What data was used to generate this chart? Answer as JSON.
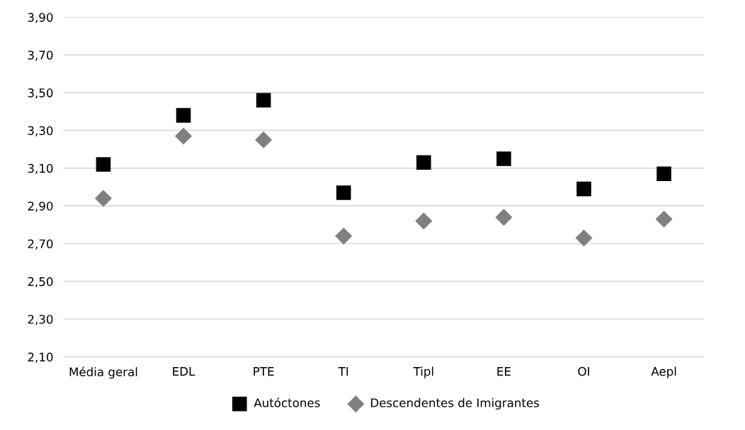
{
  "chart_data": {
    "type": "scatter",
    "categories": [
      "Média geral",
      "EDL",
      "PTE",
      "TI",
      "Tipl",
      "EE",
      "OI",
      "Aepl"
    ],
    "series": [
      {
        "name": "Autóctones",
        "color": "#000000",
        "marker": "square",
        "values": [
          3.12,
          3.38,
          3.46,
          2.97,
          3.13,
          3.15,
          2.99,
          3.07
        ]
      },
      {
        "name": "Descendentes de Imigrantes",
        "color": "#808080",
        "marker": "diamond",
        "values": [
          2.94,
          3.27,
          3.25,
          2.74,
          2.82,
          2.84,
          2.73,
          2.83
        ]
      }
    ],
    "ylim": [
      2.1,
      3.9
    ],
    "yticks": [
      {
        "value": 2.1,
        "label": "2,10"
      },
      {
        "value": 2.3,
        "label": "2,30"
      },
      {
        "value": 2.5,
        "label": "2,50"
      },
      {
        "value": 2.7,
        "label": "2,70"
      },
      {
        "value": 2.9,
        "label": "2,90"
      },
      {
        "value": 3.1,
        "label": "3,10"
      },
      {
        "value": 3.3,
        "label": "3,30"
      },
      {
        "value": 3.5,
        "label": "3,50"
      },
      {
        "value": 3.7,
        "label": "3,70"
      },
      {
        "value": 3.9,
        "label": "3,90"
      }
    ],
    "grid": "y",
    "legend": "bottom"
  }
}
